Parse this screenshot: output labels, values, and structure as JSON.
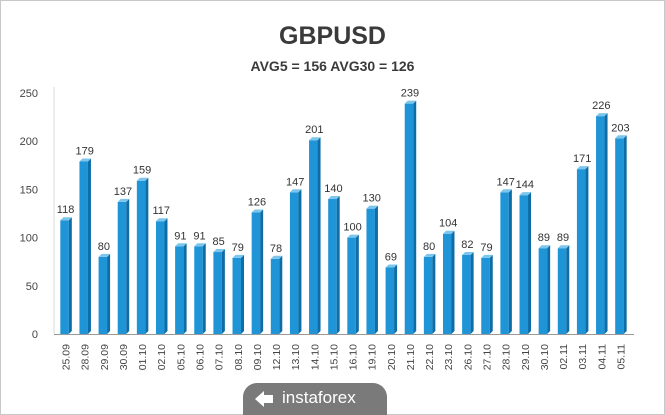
{
  "chart_data": {
    "type": "bar",
    "title": "GBPUSD",
    "subtitle": "AVG5 = 156 AVG30 = 126",
    "categories": [
      "25.09",
      "28.09",
      "29.09",
      "30.09",
      "01.10",
      "02.10",
      "05.10",
      "06.10",
      "07.10",
      "08.10",
      "09.10",
      "12.10",
      "13.10",
      "14.10",
      "15.10",
      "16.10",
      "19.10",
      "20.10",
      "21.10",
      "22.10",
      "23.10",
      "26.10",
      "27.10",
      "28.10",
      "29.10",
      "30.10",
      "02.11",
      "03.11",
      "04.11",
      "05.11"
    ],
    "values": [
      118,
      179,
      80,
      137,
      159,
      117,
      91,
      91,
      85,
      79,
      126,
      78,
      147,
      201,
      140,
      100,
      130,
      69,
      239,
      80,
      104,
      82,
      79,
      147,
      144,
      89,
      89,
      171,
      226,
      203
    ],
    "yticks": [
      0,
      50,
      100,
      150,
      200,
      250
    ],
    "ylim": [
      0,
      250
    ],
    "xlabel": "",
    "ylabel": "",
    "grid": false,
    "colors": {
      "bar": "#1f95d7",
      "bar_side": "#0e6da6",
      "bar_top": "#7cc6ee"
    }
  },
  "watermark": {
    "text": "instaforex"
  }
}
